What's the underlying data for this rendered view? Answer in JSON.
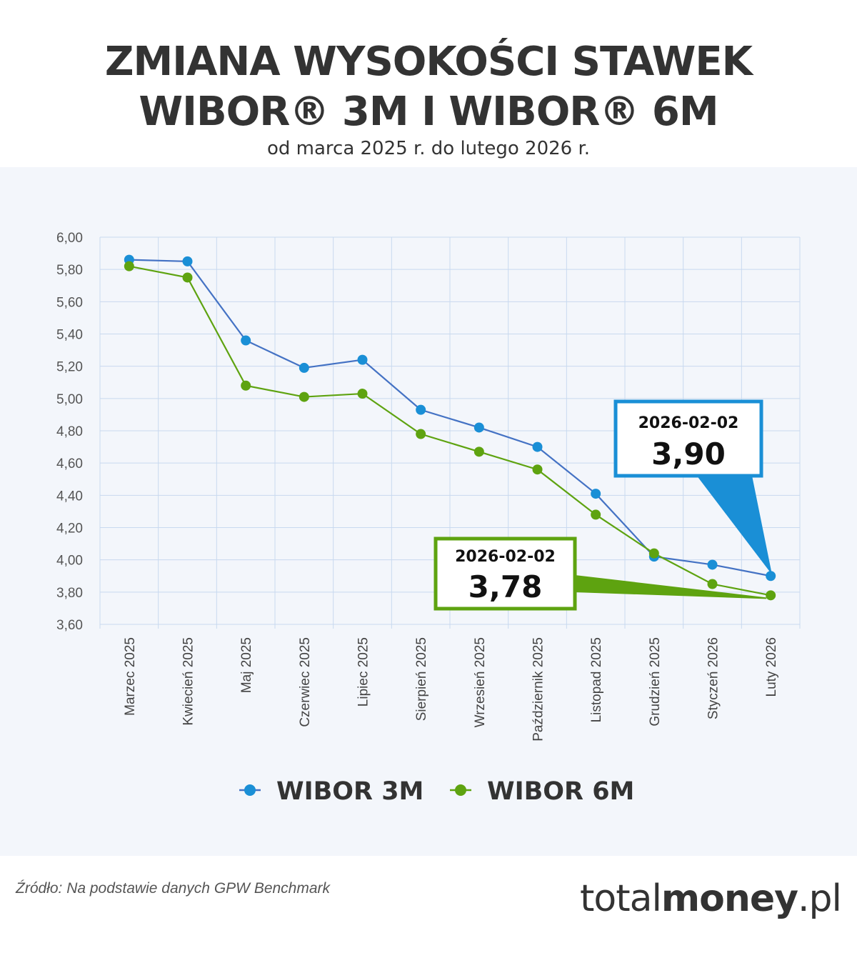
{
  "header": {
    "title_line1": "ZMIANA WYSOKOŚCI STAWEK",
    "title_line2": "WIBOR® 3M I WIBOR® 6M",
    "subtitle": "od marca 2025 r. do lutego 2026 r."
  },
  "chart_data": {
    "type": "line",
    "categories": [
      "Marzec 2025",
      "Kwiecień 2025",
      "Maj 2025",
      "Czerwiec 2025",
      "Lipiec 2025",
      "Sierpień 2025",
      "Wrzesień 2025",
      "Październik 2025",
      "Listopad 2025",
      "Grudzień 2025",
      "Styczeń 2026",
      "Luty 2026"
    ],
    "series": [
      {
        "name": "WIBOR 3M",
        "color": "#1a8fd6",
        "line_color": "#4472c4",
        "values": [
          5.86,
          5.85,
          5.36,
          5.19,
          5.24,
          4.93,
          4.82,
          4.7,
          4.41,
          4.02,
          3.97,
          3.9
        ]
      },
      {
        "name": "WIBOR 6M",
        "color": "#5ea310",
        "line_color": "#5ea310",
        "values": [
          5.82,
          5.75,
          5.08,
          5.01,
          5.03,
          4.78,
          4.67,
          4.56,
          4.28,
          4.04,
          3.85,
          3.78
        ]
      }
    ],
    "ylim": [
      3.6,
      6.0
    ],
    "yticks": [
      "3,60",
      "3,80",
      "4,00",
      "4,20",
      "4,40",
      "4,60",
      "4,80",
      "5,00",
      "5,20",
      "5,40",
      "5,60",
      "5,80",
      "6,00"
    ],
    "ytick_values": [
      3.6,
      3.8,
      4.0,
      4.2,
      4.4,
      4.6,
      4.8,
      5.0,
      5.2,
      5.4,
      5.6,
      5.8,
      6.0
    ],
    "grid": true,
    "legend_position": "bottom",
    "annotations": [
      {
        "series": "WIBOR 3M",
        "date": "2026-02-02",
        "value": "3,90",
        "color": "#1a8fd6"
      },
      {
        "series": "WIBOR 6M",
        "date": "2026-02-02",
        "value": "3,78",
        "color": "#5ea310"
      }
    ]
  },
  "footer": {
    "source": "Źródło: Na podstawie danych GPW Benchmark",
    "logo_light": "total",
    "logo_bold": "money",
    "logo_suffix": ".pl"
  }
}
